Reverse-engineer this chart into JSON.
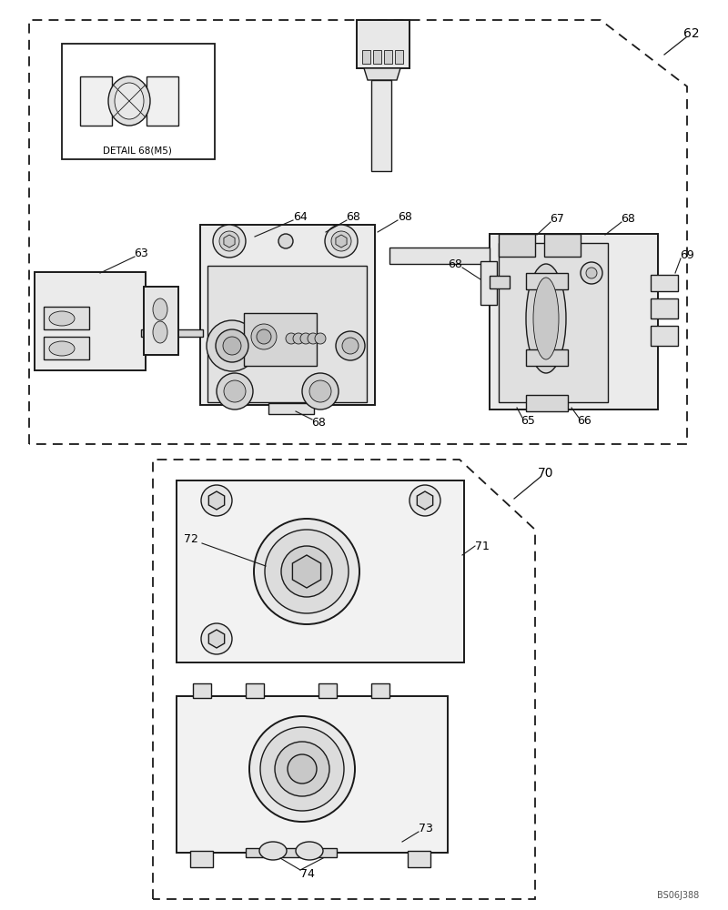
{
  "bg_color": "#ffffff",
  "lc": "#1a1a1a",
  "gc": "#cccccc",
  "fc_light": "#f5f5f5",
  "fc_mid": "#e8e8e8",
  "watermark": "BS06J388"
}
